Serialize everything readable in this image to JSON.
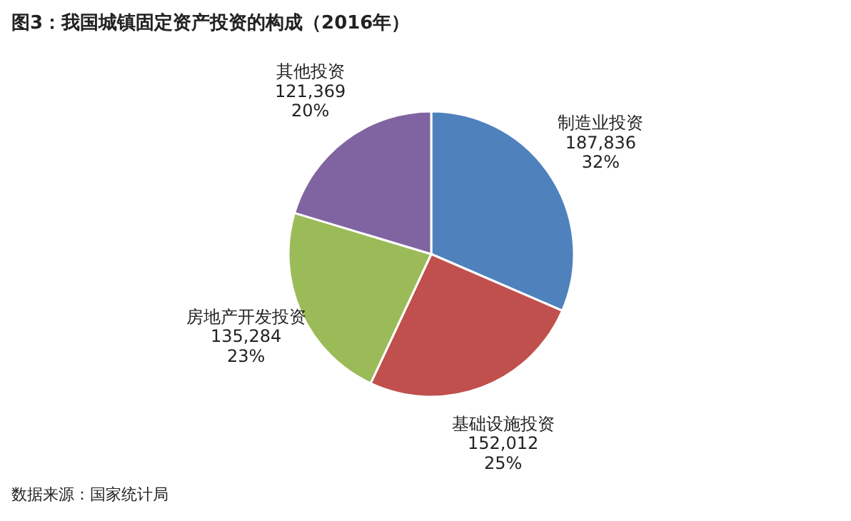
{
  "chart_data": {
    "type": "pie",
    "title": "图3：我国城镇固定资产投资的构成（2016年）",
    "categories": [
      "制造业投资",
      "基础设施投资",
      "房地产开发投资",
      "其他投资"
    ],
    "values": [
      187836,
      152012,
      135284,
      121369
    ],
    "value_labels": [
      "187,836\n32%",
      "152,012\n25%",
      "135,284\n23%",
      "121,369\n20%"
    ],
    "colors": [
      "#4f81bd",
      "#c0504d",
      "#9bbb59",
      "#8064a2"
    ],
    "annotations": [
      "数据来源：国家统计局"
    ]
  }
}
